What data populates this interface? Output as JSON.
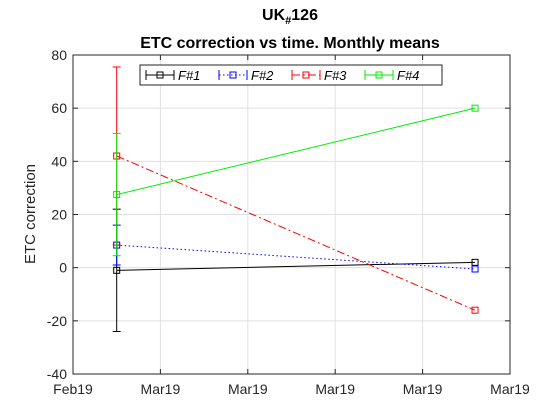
{
  "chart_data": {
    "type": "line",
    "title_main": "UK",
    "title_sub": "#",
    "title_num": "126",
    "subtitle": "ETC correction vs time. Monthly means",
    "xlabel": "",
    "ylabel": "ETC correction",
    "x_tick_labels": [
      "Feb19",
      "Mar19",
      "Mar19",
      "Mar19",
      "Mar19",
      "Mar19"
    ],
    "x_tick_positions": [
      0,
      1,
      2,
      3,
      4,
      5
    ],
    "xlim": [
      0,
      5
    ],
    "ylim": [
      -40,
      80
    ],
    "y_ticks": [
      -40,
      -20,
      0,
      20,
      40,
      60,
      80
    ],
    "grid": true,
    "legend_position": "top",
    "x": [
      0.5,
      4.6
    ],
    "series": [
      {
        "name": "F#1",
        "color": "#000000",
        "dash": "solid",
        "values": [
          -1,
          2
        ],
        "err": [
          23,
          0
        ]
      },
      {
        "name": "F#2",
        "color": "#0000ff",
        "dash": "dotted",
        "values": [
          8.5,
          -0.5
        ],
        "err": [
          7.5,
          0
        ]
      },
      {
        "name": "F#3",
        "color": "#ff0000",
        "dash": "dashdot",
        "values": [
          42,
          -16
        ],
        "err": [
          33.5,
          0
        ]
      },
      {
        "name": "F#4",
        "color": "#00ee00",
        "dash": "solid",
        "values": [
          27.5,
          60
        ],
        "err": [
          23,
          0
        ]
      }
    ]
  }
}
